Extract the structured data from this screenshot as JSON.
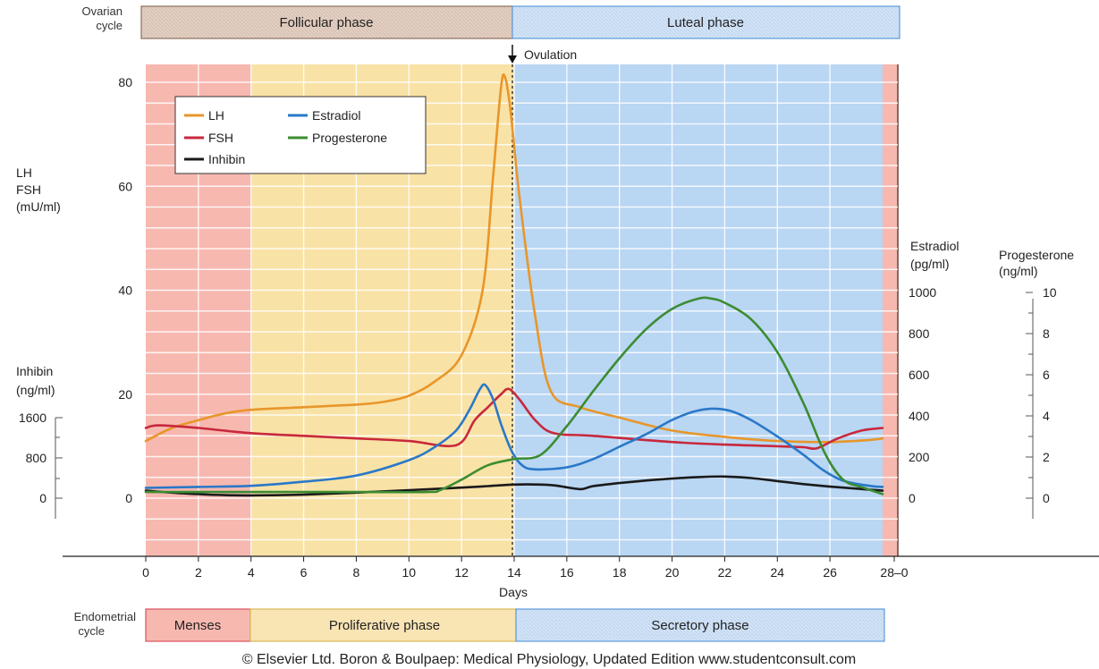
{
  "ovarian_cycle": {
    "label_line1": "Ovarian",
    "label_line2": "cycle",
    "follicular": "Follicular phase",
    "luteal": "Luteal phase"
  },
  "ovulation_label": "Ovulation",
  "endometrial_cycle": {
    "label_line1": "Endometrial",
    "label_line2": "cycle",
    "menses": "Menses",
    "proliferative": "Proliferative phase",
    "secretory": "Secretory phase"
  },
  "caption": "© Elsevier Ltd. Boron & Boulpaep: Medical Physiology, Updated Edition   www.studentconsult.com",
  "colors": {
    "LH": "#e8962a",
    "FSH": "#c8283c",
    "Inhibin": "#1a1a1a",
    "Estradiol": "#2a78c8",
    "Progesterone": "#3c8c32",
    "menses_fill": "#f7b8b0",
    "proliferative_fill": "#f9e2a6",
    "secretory_fill": "#b9d6f3"
  },
  "chart_data": {
    "type": "line",
    "xlabel": "Days",
    "x_ticks": [
      "0",
      "2",
      "4",
      "6",
      "8",
      "10",
      "12",
      "14",
      "16",
      "18",
      "20",
      "22",
      "24",
      "26",
      "28–0"
    ],
    "xlim": [
      0,
      28
    ],
    "ovulation_day": 14,
    "axes": {
      "lh_fsh": {
        "label_lines": [
          "LH",
          "FSH",
          "(mU/ml)"
        ],
        "ticks": [
          "80",
          "60",
          "40",
          "20",
          "0"
        ],
        "range": [
          0,
          80
        ]
      },
      "inhibin": {
        "label_lines": [
          "Inhibin",
          "(ng/ml)"
        ],
        "ticks": [
          "1600",
          "800",
          "0"
        ],
        "range": [
          0,
          1600
        ]
      },
      "estradiol": {
        "label_lines": [
          "Estradiol",
          "(pg/ml)"
        ],
        "ticks": [
          "1000",
          "800",
          "600",
          "400",
          "200",
          "0"
        ],
        "range": [
          0,
          1000
        ]
      },
      "progesterone": {
        "label_lines": [
          "Progesterone",
          "(ng/ml)"
        ],
        "ticks": [
          "10",
          "8",
          "6",
          "4",
          "2",
          "0"
        ],
        "range": [
          0,
          10
        ]
      }
    },
    "legend": [
      {
        "name": "LH",
        "key": "LH"
      },
      {
        "name": "Estradiol",
        "key": "Estradiol"
      },
      {
        "name": "FSH",
        "key": "FSH"
      },
      {
        "name": "Progesterone",
        "key": "Progesterone"
      },
      {
        "name": "Inhibin",
        "key": "Inhibin"
      }
    ],
    "phases": [
      {
        "name": "menses",
        "from": 0,
        "to": 4
      },
      {
        "name": "proliferative",
        "from": 4,
        "to": 14
      },
      {
        "name": "secretory",
        "from": 14,
        "to": 28
      }
    ],
    "series": [
      {
        "name": "LH",
        "axis": "lh_fsh",
        "points": [
          [
            0,
            11
          ],
          [
            1,
            13.5
          ],
          [
            2,
            15
          ],
          [
            3,
            16.3
          ],
          [
            4,
            17
          ],
          [
            6,
            17.5
          ],
          [
            8,
            18
          ],
          [
            9,
            18.5
          ],
          [
            10,
            19.7
          ],
          [
            11,
            22.5
          ],
          [
            12,
            27.5
          ],
          [
            12.8,
            40
          ],
          [
            13.2,
            62
          ],
          [
            13.5,
            79
          ],
          [
            13.65,
            81
          ],
          [
            13.85,
            75
          ],
          [
            14.2,
            58
          ],
          [
            14.8,
            35
          ],
          [
            15.4,
            20.5
          ],
          [
            16.5,
            17.5
          ],
          [
            18,
            15.5
          ],
          [
            20,
            13
          ],
          [
            22,
            11.8
          ],
          [
            24,
            11
          ],
          [
            26,
            10.8
          ],
          [
            27.5,
            11.2
          ],
          [
            28,
            11.5
          ]
        ]
      },
      {
        "name": "FSH",
        "axis": "lh_fsh",
        "points": [
          [
            0,
            13.5
          ],
          [
            0.5,
            14
          ],
          [
            2,
            13.5
          ],
          [
            4,
            12.5
          ],
          [
            6,
            12
          ],
          [
            8,
            11.5
          ],
          [
            10,
            11
          ],
          [
            11.8,
            10.2
          ],
          [
            12.5,
            15
          ],
          [
            13,
            17.5
          ],
          [
            13.5,
            20
          ],
          [
            13.8,
            21
          ],
          [
            14.2,
            19
          ],
          [
            14.8,
            15
          ],
          [
            15.5,
            12.5
          ],
          [
            17,
            12
          ],
          [
            20,
            10.8
          ],
          [
            22,
            10.3
          ],
          [
            24,
            10
          ],
          [
            25,
            9.8
          ],
          [
            25.5,
            9.6
          ],
          [
            26.3,
            11.5
          ],
          [
            27.2,
            13
          ],
          [
            28,
            13.5
          ]
        ]
      },
      {
        "name": "Inhibin",
        "axis": "inhibin",
        "points": [
          [
            0,
            150
          ],
          [
            1,
            110
          ],
          [
            2,
            80
          ],
          [
            3,
            60
          ],
          [
            4,
            55
          ],
          [
            6,
            70
          ],
          [
            8,
            110
          ],
          [
            10,
            160
          ],
          [
            12,
            210
          ],
          [
            13,
            240
          ],
          [
            14,
            270
          ],
          [
            15,
            270
          ],
          [
            15.6,
            250
          ],
          [
            16.5,
            180
          ],
          [
            17,
            240
          ],
          [
            18,
            300
          ],
          [
            19,
            350
          ],
          [
            20,
            390
          ],
          [
            21,
            420
          ],
          [
            22,
            430
          ],
          [
            23,
            400
          ],
          [
            24,
            340
          ],
          [
            25,
            280
          ],
          [
            26,
            230
          ],
          [
            27,
            190
          ],
          [
            28,
            150
          ]
        ]
      },
      {
        "name": "Estradiol",
        "axis": "estradiol",
        "points": [
          [
            0,
            50
          ],
          [
            2,
            55
          ],
          [
            4,
            60
          ],
          [
            6,
            80
          ],
          [
            8,
            110
          ],
          [
            10,
            185
          ],
          [
            11,
            250
          ],
          [
            11.8,
            330
          ],
          [
            12.3,
            430
          ],
          [
            12.7,
            530
          ],
          [
            12.9,
            550
          ],
          [
            13.2,
            480
          ],
          [
            13.5,
            360
          ],
          [
            13.9,
            230
          ],
          [
            14.3,
            160
          ],
          [
            14.8,
            140
          ],
          [
            16,
            150
          ],
          [
            17,
            190
          ],
          [
            18,
            250
          ],
          [
            19,
            310
          ],
          [
            20,
            380
          ],
          [
            20.8,
            420
          ],
          [
            21.5,
            435
          ],
          [
            22.2,
            425
          ],
          [
            23,
            380
          ],
          [
            24,
            300
          ],
          [
            25,
            210
          ],
          [
            25.7,
            140
          ],
          [
            26.5,
            85
          ],
          [
            27.5,
            60
          ],
          [
            28,
            55
          ]
        ]
      },
      {
        "name": "Progesterone",
        "axis": "progesterone",
        "points": [
          [
            0,
            0.3
          ],
          [
            4,
            0.3
          ],
          [
            8,
            0.3
          ],
          [
            10.7,
            0.3
          ],
          [
            11.2,
            0.4
          ],
          [
            12,
            0.9
          ],
          [
            13,
            1.6
          ],
          [
            14,
            1.9
          ],
          [
            15,
            2.1
          ],
          [
            16,
            3.5
          ],
          [
            17,
            5.2
          ],
          [
            18,
            6.8
          ],
          [
            19,
            8.2
          ],
          [
            20,
            9.2
          ],
          [
            21,
            9.7
          ],
          [
            21.5,
            9.7
          ],
          [
            22,
            9.5
          ],
          [
            23,
            8.7
          ],
          [
            24,
            7.1
          ],
          [
            25,
            4.6
          ],
          [
            25.8,
            2.2
          ],
          [
            26.5,
            0.9
          ],
          [
            27.3,
            0.5
          ],
          [
            28,
            0.2
          ]
        ]
      }
    ]
  }
}
